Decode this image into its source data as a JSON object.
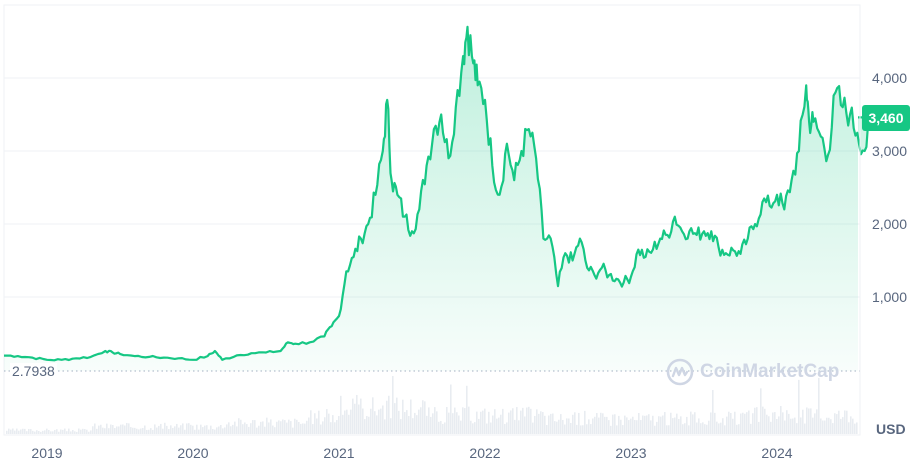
{
  "chart_data": {
    "type": "area",
    "title": "",
    "xlabel": "",
    "ylabel": "USD",
    "currency": "USD",
    "current_price": 3460,
    "current_price_label": "3,460",
    "min_marker_label": "2.7938",
    "y_ticks": [
      1000,
      2000,
      3000,
      4000
    ],
    "y_tick_labels": [
      "1,000",
      "2,000",
      "3,000",
      "4,000"
    ],
    "x_tick_labels": [
      "2019",
      "2020",
      "2021",
      "2022",
      "2023",
      "2024"
    ],
    "ylim": [
      0,
      4900
    ],
    "grid": true,
    "line_color": "#16c784",
    "watermark": "CoinMarketCap",
    "x": [
      2018.7,
      2018.8,
      2018.9,
      2019.0,
      2019.1,
      2019.2,
      2019.3,
      2019.4,
      2019.45,
      2019.5,
      2019.6,
      2019.7,
      2019.8,
      2019.9,
      2020.0,
      2020.1,
      2020.15,
      2020.2,
      2020.3,
      2020.4,
      2020.5,
      2020.6,
      2020.65,
      2020.7,
      2020.8,
      2020.9,
      2020.95,
      2021.0,
      2021.05,
      2021.1,
      2021.15,
      2021.2,
      2021.25,
      2021.3,
      2021.33,
      2021.36,
      2021.4,
      2021.45,
      2021.5,
      2021.55,
      2021.6,
      2021.65,
      2021.7,
      2021.75,
      2021.8,
      2021.85,
      2021.88,
      2021.92,
      2021.95,
      2022.0,
      2022.05,
      2022.1,
      2022.15,
      2022.2,
      2022.25,
      2022.3,
      2022.35,
      2022.4,
      2022.45,
      2022.5,
      2022.55,
      2022.6,
      2022.65,
      2022.7,
      2022.75,
      2022.8,
      2022.85,
      2022.9,
      2022.95,
      2023.0,
      2023.05,
      2023.1,
      2023.15,
      2023.2,
      2023.25,
      2023.3,
      2023.35,
      2023.4,
      2023.45,
      2023.5,
      2023.55,
      2023.6,
      2023.65,
      2023.7,
      2023.75,
      2023.8,
      2023.85,
      2023.9,
      2023.95,
      2024.0,
      2024.05,
      2024.1,
      2024.15,
      2024.2,
      2024.22,
      2024.25,
      2024.3,
      2024.35,
      2024.4,
      2024.45,
      2024.5,
      2024.55,
      2024.6,
      2024.65
    ],
    "values": [
      200,
      190,
      170,
      140,
      140,
      160,
      180,
      260,
      240,
      220,
      190,
      180,
      170,
      160,
      140,
      190,
      260,
      140,
      200,
      230,
      240,
      260,
      380,
      360,
      380,
      460,
      600,
      740,
      1350,
      1550,
      1800,
      2000,
      2400,
      3000,
      3700,
      2600,
      2400,
      2100,
      1900,
      2200,
      2800,
      3300,
      3500,
      2900,
      3600,
      4300,
      4700,
      4200,
      3900,
      3700,
      2800,
      2400,
      3100,
      2600,
      3000,
      3300,
      2900,
      1800,
      1800,
      1150,
      1600,
      1500,
      1800,
      1400,
      1300,
      1400,
      1300,
      1250,
      1200,
      1280,
      1650,
      1550,
      1650,
      1800,
      1850,
      2100,
      1900,
      1900,
      1850,
      1900,
      1900,
      1680,
      1600,
      1640,
      1590,
      1800,
      2000,
      2300,
      2250,
      2400,
      2200,
      2600,
      3000,
      3900,
      3400,
      3400,
      3200,
      2950,
      3800,
      3600,
      3500,
      3250,
      3000,
      3460
    ],
    "volume_note": "relative daily volume bars along bottom panel"
  },
  "axis": {
    "usd_label": "USD"
  },
  "badge": {
    "current_price": "3,460"
  },
  "baseline": {
    "label": "2.7938"
  },
  "watermark": {
    "text": "CoinMarketCap"
  }
}
